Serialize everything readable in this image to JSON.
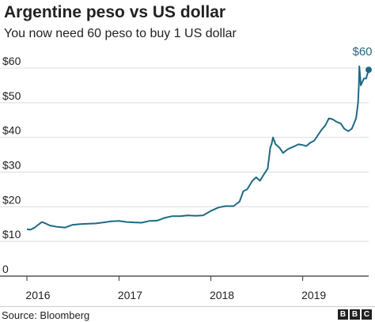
{
  "chart_data": {
    "type": "line",
    "title": "Argentine peso vs US dollar",
    "subtitle": "You now need 60 peso to buy 1 US dollar",
    "xlabel": "",
    "ylabel": "",
    "xlim": [
      "2016-01-01",
      "2019-09-20"
    ],
    "ylim": [
      0,
      60
    ],
    "yticks": [
      0,
      10,
      20,
      30,
      40,
      50,
      60
    ],
    "ytick_labels": [
      "0",
      "$10",
      "$20",
      "$30",
      "$40",
      "$50",
      "$60"
    ],
    "xtick_labels": [
      "2016",
      "2017",
      "2018",
      "2019"
    ],
    "xticks": [
      "2016-01-01",
      "2017-01-01",
      "2018-01-01",
      "2019-01-01"
    ],
    "end_label": "$60",
    "grid": "horizontal",
    "line_color": "#1d6a85",
    "x": [
      "2016-01-01",
      "2016-01-15",
      "2016-02-01",
      "2016-02-15",
      "2016-03-01",
      "2016-03-15",
      "2016-04-01",
      "2016-05-01",
      "2016-06-01",
      "2016-07-01",
      "2016-08-01",
      "2016-09-01",
      "2016-10-01",
      "2016-11-01",
      "2016-12-01",
      "2017-01-01",
      "2017-02-01",
      "2017-03-01",
      "2017-04-01",
      "2017-05-01",
      "2017-06-01",
      "2017-07-01",
      "2017-08-01",
      "2017-09-01",
      "2017-10-01",
      "2017-11-01",
      "2017-12-01",
      "2018-01-01",
      "2018-02-01",
      "2018-03-01",
      "2018-04-01",
      "2018-04-25",
      "2018-05-10",
      "2018-05-25",
      "2018-06-15",
      "2018-06-30",
      "2018-07-15",
      "2018-08-01",
      "2018-08-15",
      "2018-08-25",
      "2018-08-30",
      "2018-09-05",
      "2018-09-15",
      "2018-10-01",
      "2018-10-15",
      "2018-11-01",
      "2018-11-15",
      "2018-12-01",
      "2018-12-15",
      "2019-01-01",
      "2019-01-15",
      "2019-02-01",
      "2019-02-15",
      "2019-03-01",
      "2019-03-15",
      "2019-04-01",
      "2019-04-15",
      "2019-05-01",
      "2019-05-15",
      "2019-06-01",
      "2019-06-15",
      "2019-07-01",
      "2019-07-15",
      "2019-08-01",
      "2019-08-09",
      "2019-08-12",
      "2019-08-14",
      "2019-08-20",
      "2019-09-01",
      "2019-09-10",
      "2019-09-20"
    ],
    "series": [
      {
        "values": [
          13.5,
          13.4,
          14.0,
          14.8,
          15.6,
          15.2,
          14.6,
          14.2,
          14.0,
          14.8,
          15.0,
          15.1,
          15.2,
          15.5,
          15.8,
          15.9,
          15.6,
          15.5,
          15.4,
          15.9,
          16.0,
          16.8,
          17.3,
          17.3,
          17.5,
          17.4,
          17.5,
          18.8,
          19.8,
          20.2,
          20.2,
          21.5,
          24.5,
          25.0,
          27.5,
          28.5,
          27.5,
          29.5,
          31.0,
          37.0,
          38.0,
          40.0,
          38.0,
          37.0,
          35.5,
          36.5,
          37.0,
          37.5,
          38.0,
          37.8,
          37.5,
          38.5,
          39.0,
          40.5,
          42.0,
          43.5,
          45.5,
          45.2,
          44.5,
          44.0,
          42.5,
          41.8,
          42.5,
          45.5,
          50.0,
          55.0,
          60.5,
          55.0,
          57.0,
          57.0,
          59.5
        ]
      }
    ]
  },
  "footer": {
    "source": "Source: Bloomberg",
    "logo_letters": [
      "B",
      "B",
      "C"
    ]
  }
}
